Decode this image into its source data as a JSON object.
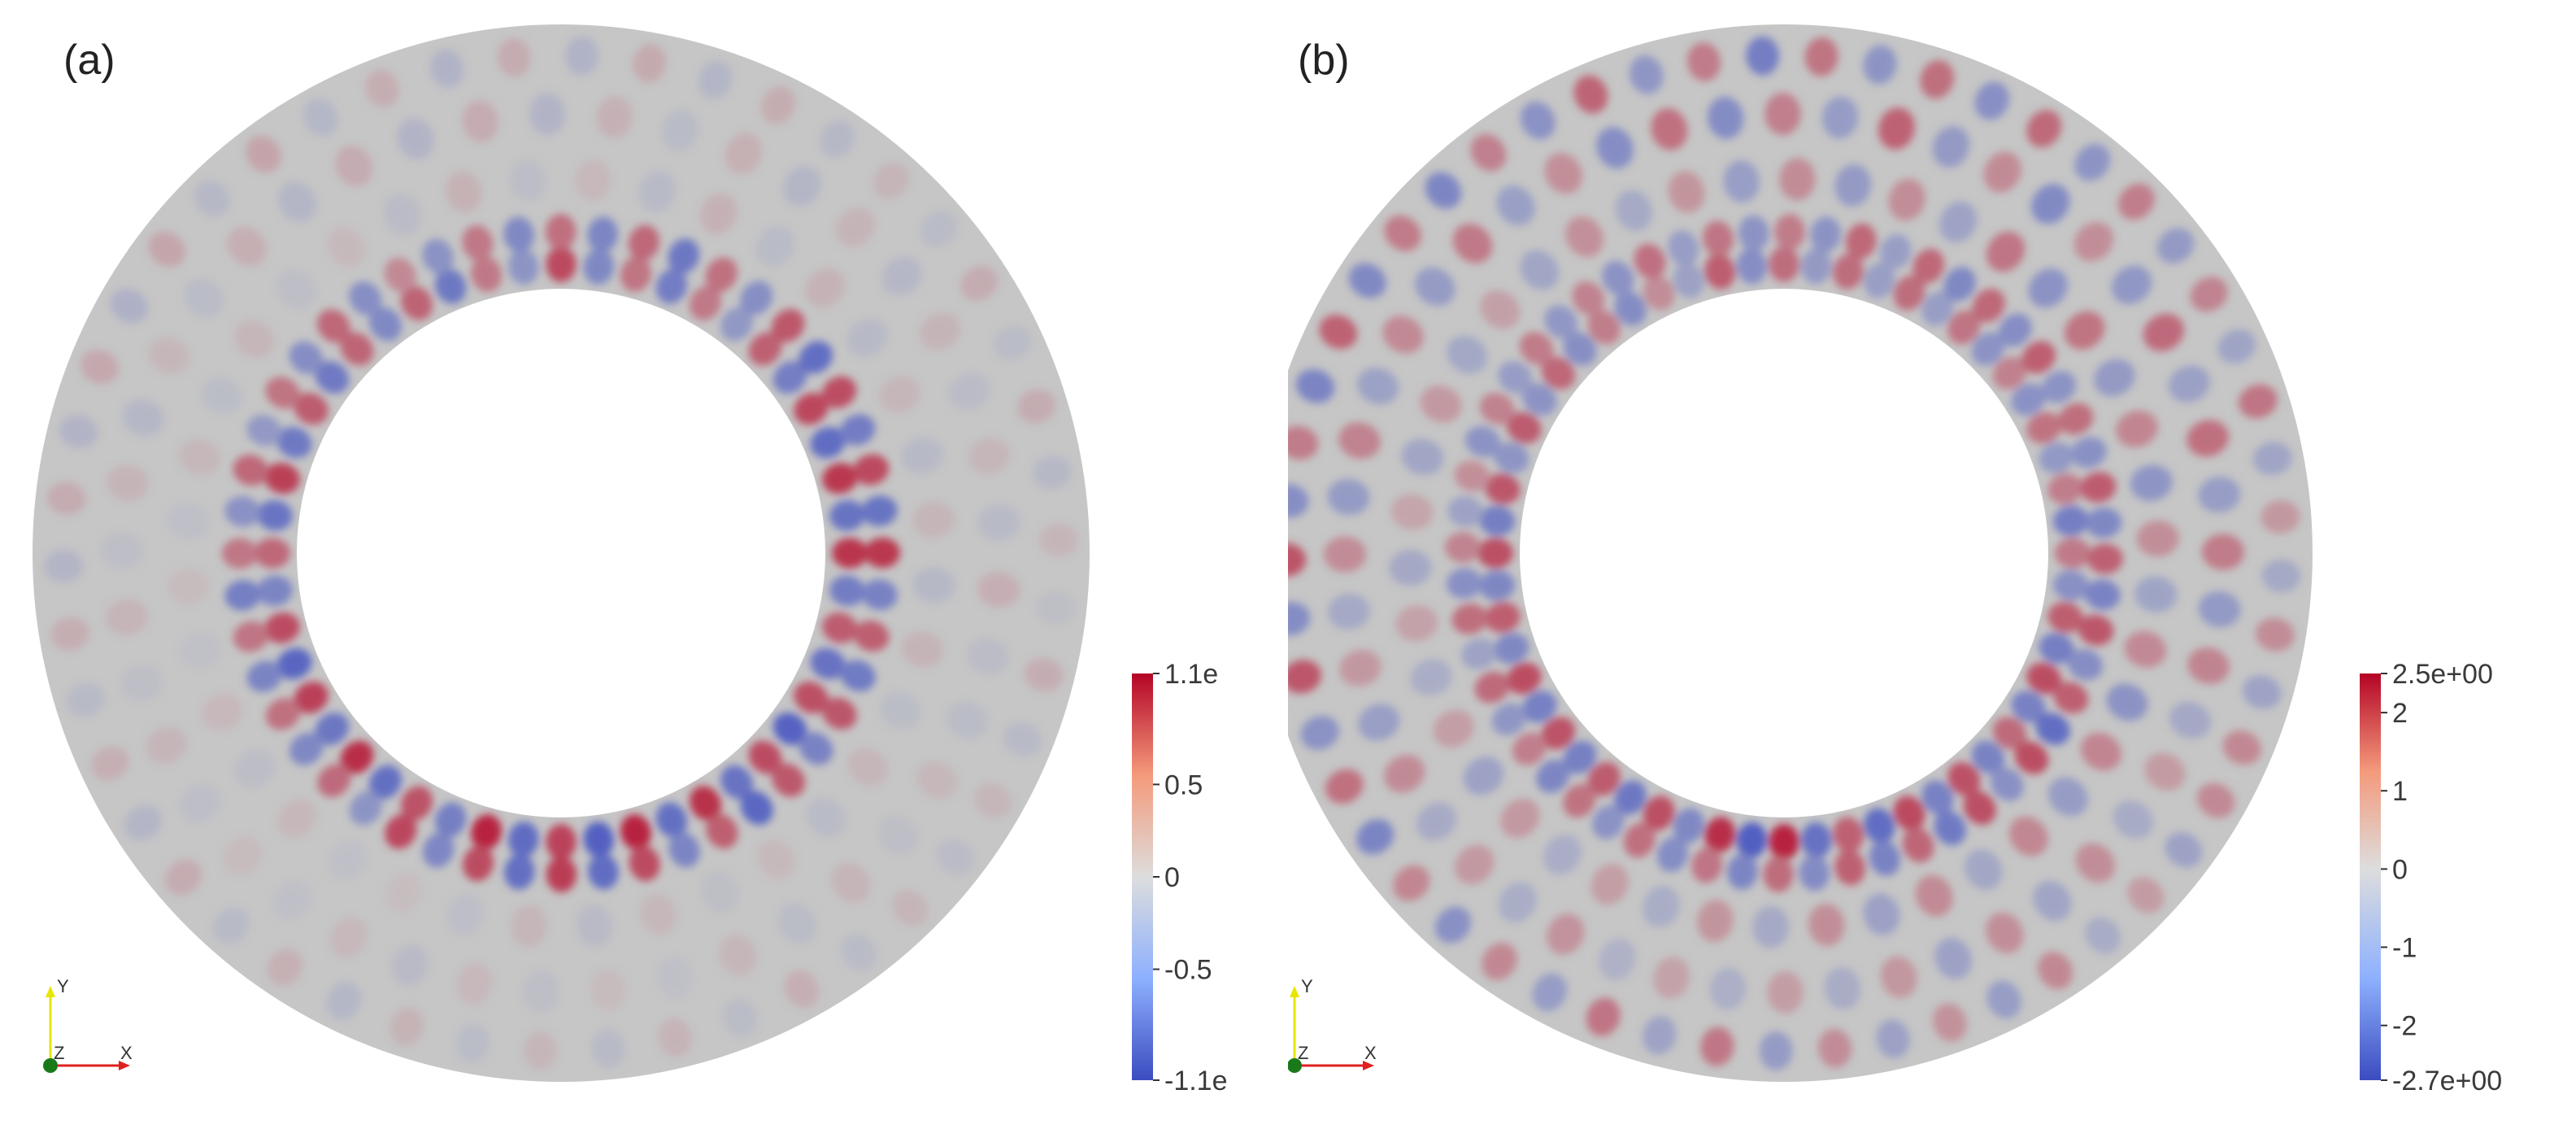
{
  "panels": [
    {
      "label": "(a)",
      "colorbar": {
        "ticks": [
          "1.1e",
          "0.5",
          "0",
          "-0.5",
          "-1.1e"
        ],
        "tick_values": [
          1.1,
          0.5,
          0,
          -0.5,
          -1.1
        ],
        "range": [
          -1.1,
          1.1
        ]
      },
      "field": {
        "inner_modes": 24,
        "inner_amplitude": 1.0,
        "outer_amplitude": 0.2
      },
      "axes": {
        "y": "Y",
        "z": "Z",
        "x": "X"
      }
    },
    {
      "label": "(b)",
      "colorbar": {
        "ticks": [
          "2.5e+00",
          "2",
          "1",
          "0",
          "-1",
          "-2",
          "-2.7e+00"
        ],
        "tick_values": [
          2.5,
          2,
          1,
          0,
          -1,
          -2,
          -2.7
        ],
        "range": [
          -2.7,
          2.5
        ]
      },
      "field": {
        "inner_modes": 28,
        "inner_amplitude": 0.85,
        "outer_amplitude": 0.65
      },
      "axes": {
        "y": "Y",
        "z": "Z",
        "x": "X"
      }
    }
  ],
  "colors": {
    "positive": "#b40426",
    "neutral": "#c7c7c7",
    "negative": "#3b4cc0",
    "axis_y": "#e6e600",
    "axis_x": "#e02020",
    "axis_z": "#1a7a1a"
  }
}
